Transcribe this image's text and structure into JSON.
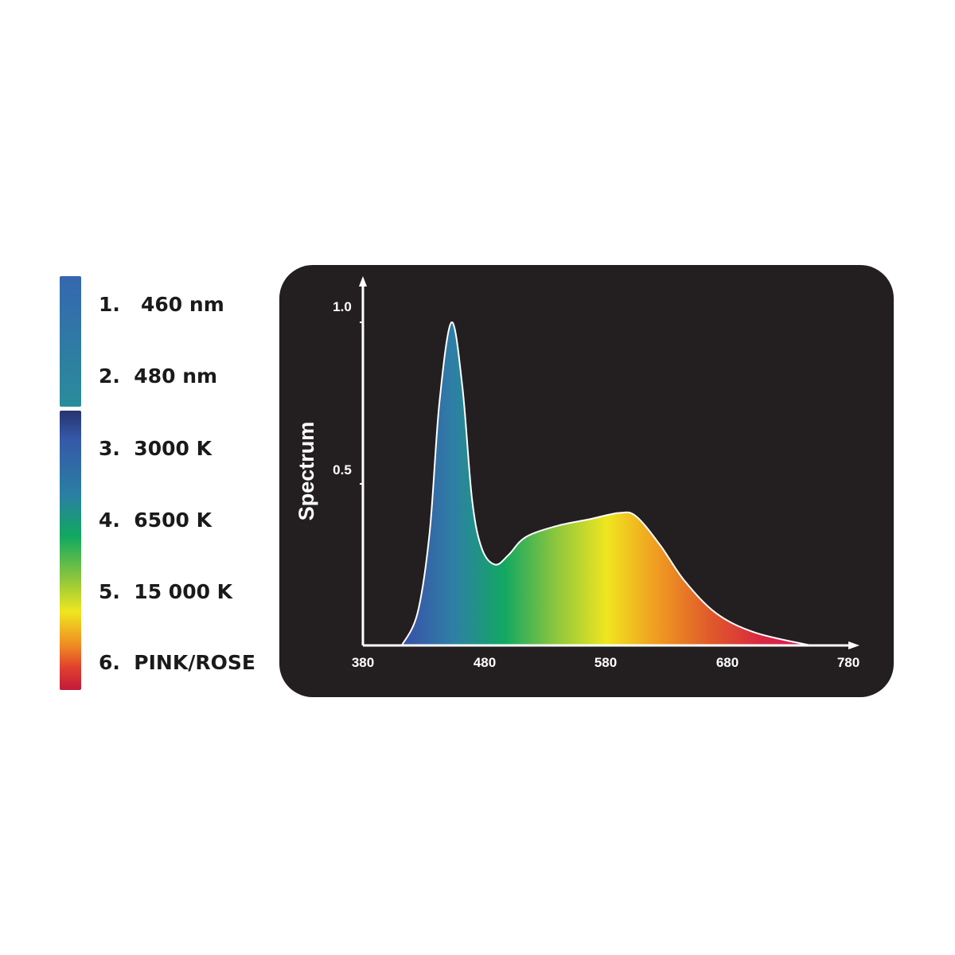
{
  "legend": {
    "items": [
      {
        "label": "1.   460 nm"
      },
      {
        "label": "2.  480 nm"
      },
      {
        "label": "3.  3000 K"
      },
      {
        "label": "4.  6500 K"
      },
      {
        "label": "5.  15 000 K"
      },
      {
        "label": "6.  PINK/ROSE"
      }
    ]
  },
  "chart_data": {
    "type": "area",
    "title": "",
    "xlabel": "",
    "ylabel": "Spectrum",
    "xlim": [
      380,
      780
    ],
    "ylim": [
      0,
      1.0
    ],
    "x_ticks": [
      "380",
      "480",
      "580",
      "680",
      "780"
    ],
    "y_ticks": [
      "0.5",
      "1.0"
    ],
    "grid": false,
    "background": "#231f20",
    "fill": "spectral gradient (blue to red along wavelength)",
    "gradient_colors": [
      "#3a4fa8",
      "#2e7fa6",
      "#12a862",
      "#8cc63d",
      "#f0e620",
      "#f09a22",
      "#e05a2a",
      "#d82a40",
      "#d81a5a"
    ],
    "series": [
      {
        "x": [
          412,
          425,
          435,
          443,
          453,
          462,
          470,
          478,
          489,
          500,
          514,
          540,
          566,
          591,
          605,
          625,
          645,
          671,
          703,
          749
        ],
        "y": [
          0,
          0.1,
          0.35,
          0.75,
          1.0,
          0.8,
          0.45,
          0.3,
          0.25,
          0.28,
          0.335,
          0.37,
          0.39,
          0.41,
          0.4,
          0.31,
          0.2,
          0.1,
          0.04,
          0
        ]
      }
    ]
  }
}
